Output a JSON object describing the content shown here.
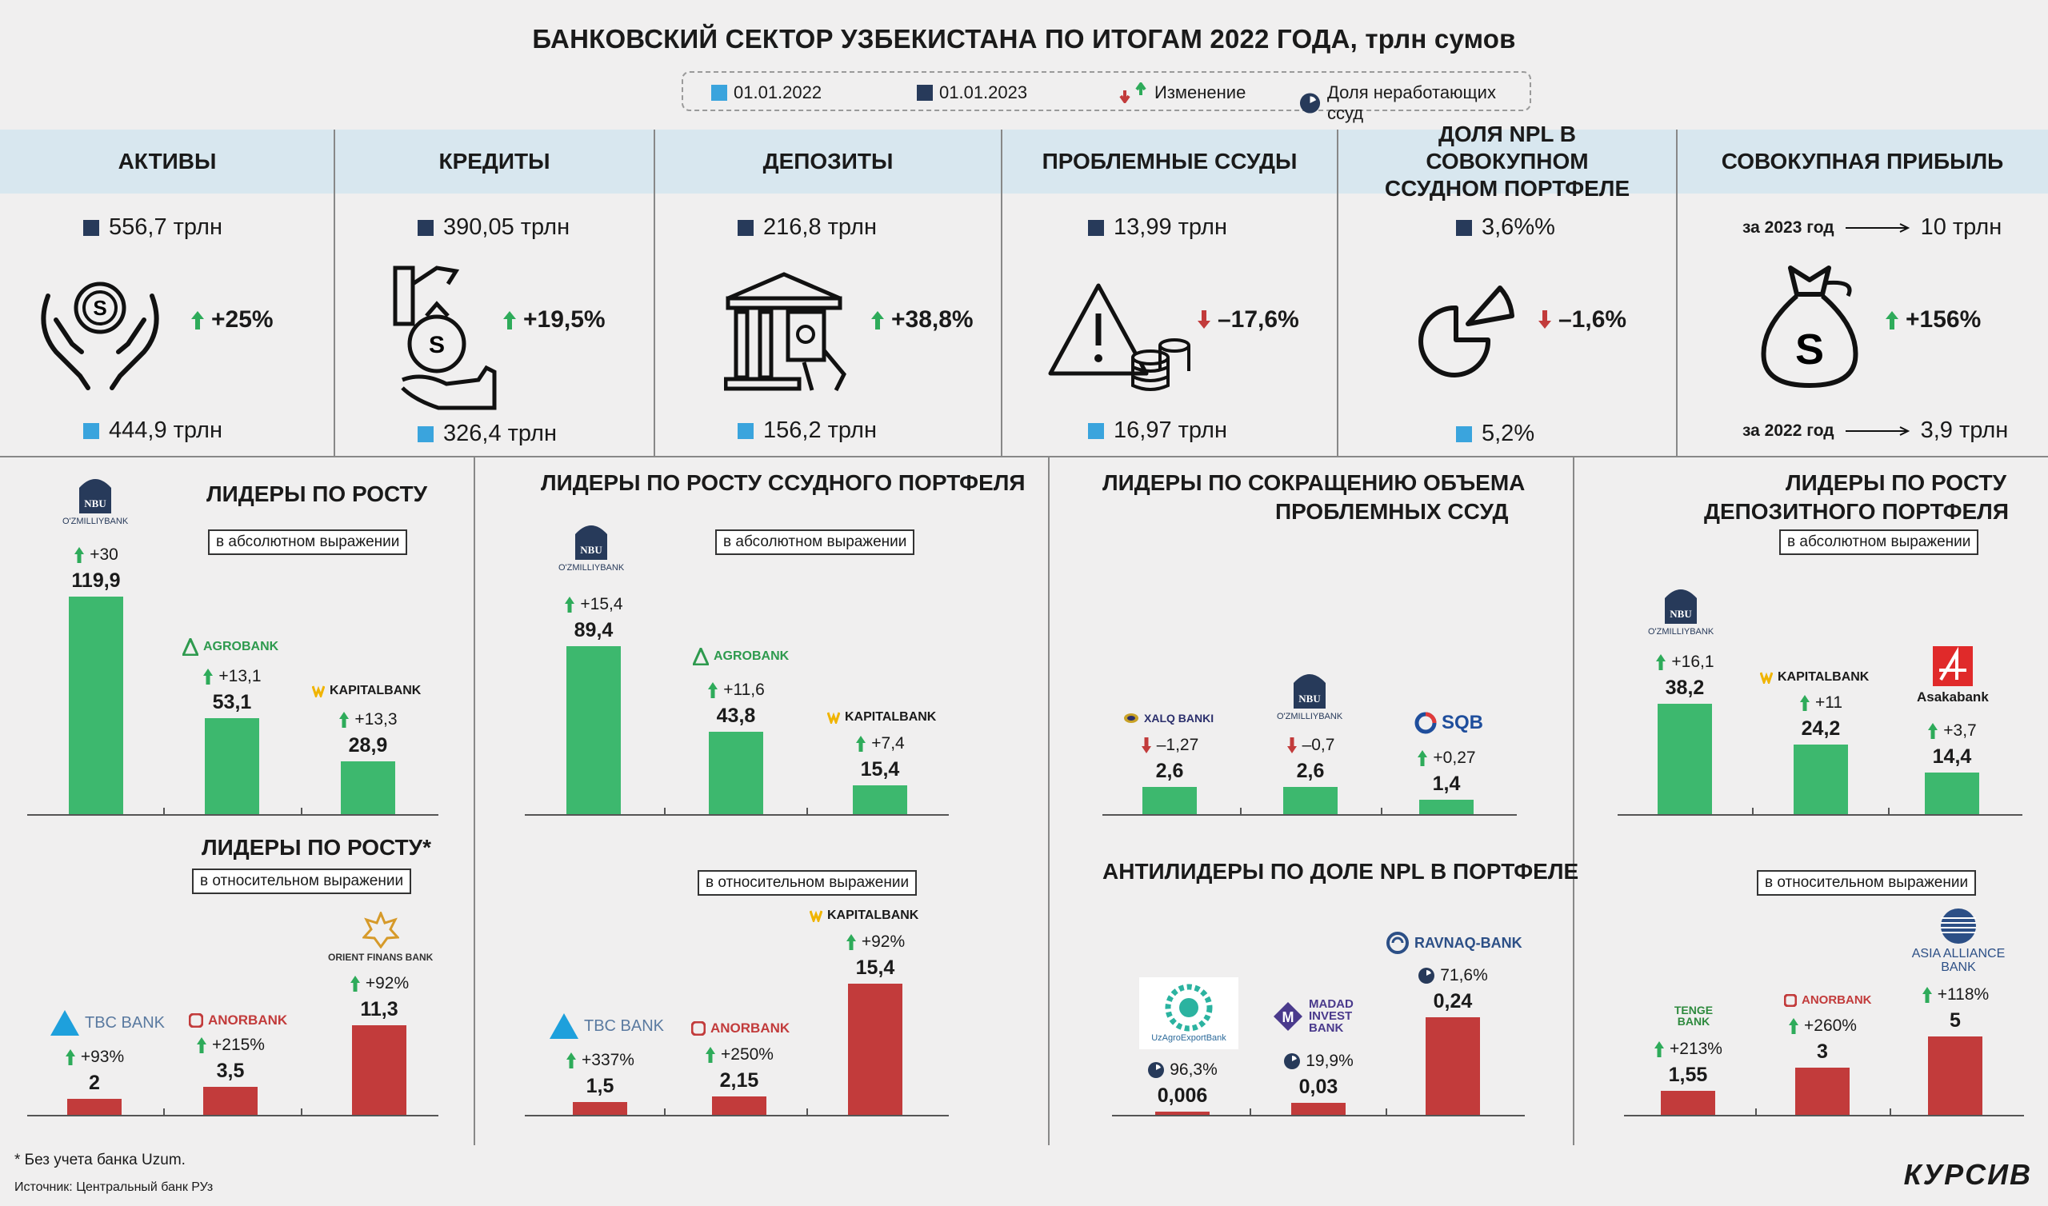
{
  "header": {
    "title": "БАНКОВСКИЙ СЕКТОР УЗБЕКИСТАНА ПО ИТОГАМ 2022 ГОДА, трлн сумов"
  },
  "legend": {
    "date_2022": "01.01.2022",
    "date_2023": "01.01.2023",
    "change": "Изменение",
    "npl_share": "Доля неработающих ссуд"
  },
  "colors": {
    "light_blue": "#3aa4dd",
    "dark_blue": "#273a5a",
    "green": "#3db86e",
    "red": "#c23b3b",
    "header_band": "#d8e7ef",
    "arrow_up": "#2eab5a",
    "arrow_down": "#c23b3b"
  },
  "kpis": [
    {
      "title": "АКТИВЫ",
      "value_2023": "556,7 трлн",
      "value_2022": "444,9 трлн",
      "change": "+25%",
      "direction": "up",
      "icon": "hands-coin-icon"
    },
    {
      "title": "КРЕДИТЫ",
      "value_2023": "390,05 трлн",
      "value_2022": "326,4 трлн",
      "change": "+19,5%",
      "direction": "up",
      "icon": "money-bag-hand-icon"
    },
    {
      "title": "ДЕПОЗИТЫ",
      "value_2023": "216,8 трлн",
      "value_2022": "156,2 трлн",
      "change": "+38,8%",
      "direction": "up",
      "icon": "bank-building-icon"
    },
    {
      "title": "ПРОБЛЕМНЫЕ ССУДЫ",
      "value_2023": "13,99 трлн",
      "value_2022": "16,97 трлн",
      "change": "–17,6%",
      "direction": "down",
      "icon": "warning-coins-icon"
    },
    {
      "title": "ДОЛЯ NPL В СОВОКУПНОМ ССУДНОМ ПОРТФЕЛЕ",
      "value_2023": "3,6%%",
      "value_2022": "5,2%",
      "change": "–1,6%",
      "direction": "down",
      "icon": "pie-slice-icon"
    },
    {
      "title": "СОВОКУПНАЯ ПРИБЫЛЬ",
      "row_2023_label": "за 2023 год",
      "row_2023_value": "10 трлн",
      "row_2022_label": "за 2022 год",
      "row_2022_value": "3,9 трлн",
      "change": "+156%",
      "direction": "up",
      "icon": "money-sack-icon"
    }
  ],
  "sections": {
    "s1_title": "ЛИДЕРЫ ПО РОСТУ",
    "s2_title": "ЛИДЕРЫ ПО РОСТУ ССУДНОГО ПОРТФЕЛЯ",
    "s3_title_1": "ЛИДЕРЫ ПО СОКРАЩЕНИЮ ОБЪЕМА",
    "s3_title_2": "ПРОБЛЕМНЫХ ССУД",
    "s4_title_1": "ЛИДЕРЫ ПО РОСТУ",
    "s4_title_2": "ДЕПОЗИТНОГО ПОРТФЕЛЯ",
    "s5_title": "ЛИДЕРЫ ПО РОСТУ*",
    "s7_title": "АНТИЛИДЕРЫ ПО ДОЛЕ NPL В ПОРТФЕЛЕ",
    "tag_abs": "в абсолютном выражении",
    "tag_rel": "в относительном выражении"
  },
  "logos": {
    "nbu": "NBU",
    "nbu_sub": "O'ZMILLIYBANK",
    "agrobank": "AGROBANK",
    "kapitalbank": "KAPITALBANK",
    "xalq": "XALQ BANKI",
    "sqb": "SQB",
    "asaka": "Asakabank",
    "tbc": "TBC BANK",
    "anor": "ANORBANK",
    "orient": "ORIENT FINANS BANK",
    "uzagro": "UzAgroExportBank",
    "madad": "MADAD INVEST BANK",
    "ravnaq": "RAVNAQ-BANK",
    "tenge": "TENGE BANK",
    "asia": "ASIA ALLIANCE BANK"
  },
  "chart_data": [
    {
      "type": "bar",
      "id": "c1",
      "title": "ЛИДЕРЫ ПО РОСТУ",
      "subtitle": "в абсолютном выражении",
      "categories": [
        "NBU",
        "AGROBANK",
        "KAPITALBANK"
      ],
      "values": [
        119.9,
        53.1,
        28.9
      ],
      "labels": [
        "119,9",
        "53,1",
        "28,9"
      ],
      "changes": [
        "+30",
        "+13,1",
        "+13,3"
      ],
      "directions": [
        "up",
        "up",
        "up"
      ],
      "color": "green"
    },
    {
      "type": "bar",
      "id": "c2",
      "title": "ЛИДЕРЫ ПО РОСТУ ССУДНОГО ПОРТФЕЛЯ",
      "subtitle": "в абсолютном выражении",
      "categories": [
        "NBU",
        "AGROBANK",
        "KAPITALBANK"
      ],
      "values": [
        89.4,
        43.8,
        15.4
      ],
      "labels": [
        "89,4",
        "43,8",
        "15,4"
      ],
      "changes": [
        "+15,4",
        "+11,6",
        "+7,4"
      ],
      "directions": [
        "up",
        "up",
        "up"
      ],
      "color": "green"
    },
    {
      "type": "bar",
      "id": "c3",
      "title": "ЛИДЕРЫ ПО СОКРАЩЕНИЮ ОБЪЕМА ПРОБЛЕМНЫХ ССУД",
      "categories": [
        "XALQ BANKI",
        "NBU",
        "SQB"
      ],
      "values": [
        2.6,
        2.6,
        1.4
      ],
      "labels": [
        "2,6",
        "2,6",
        "1,4"
      ],
      "changes": [
        "–1,27",
        "–0,7",
        "+0,27"
      ],
      "directions": [
        "down",
        "down",
        "up"
      ],
      "color": "green"
    },
    {
      "type": "bar",
      "id": "c4",
      "title": "ЛИДЕРЫ ПО РОСТУ ДЕПОЗИТНОГО ПОРТФЕЛЯ",
      "subtitle": "в абсолютном выражении",
      "categories": [
        "NBU",
        "KAPITALBANK",
        "Asakabank"
      ],
      "values": [
        38.2,
        24.2,
        14.4
      ],
      "labels": [
        "38,2",
        "24,2",
        "14,4"
      ],
      "changes": [
        "+16,1",
        "+11",
        "+3,7"
      ],
      "directions": [
        "up",
        "up",
        "up"
      ],
      "color": "green"
    },
    {
      "type": "bar",
      "id": "c5",
      "title": "ЛИДЕРЫ ПО РОСТУ*",
      "subtitle": "в относительном выражении",
      "categories": [
        "TBC BANK",
        "ANORBANK",
        "ORIENT FINANS BANK"
      ],
      "values": [
        2,
        3.5,
        11.3
      ],
      "labels": [
        "2",
        "3,5",
        "11,3"
      ],
      "changes": [
        "+93%",
        "+215%",
        "+92%"
      ],
      "directions": [
        "up",
        "up",
        "up"
      ],
      "color": "red"
    },
    {
      "type": "bar",
      "id": "c6",
      "subtitle": "в относительном выражении",
      "categories": [
        "TBC BANK",
        "ANORBANK",
        "KAPITALBANK"
      ],
      "values": [
        1.5,
        2.15,
        15.4
      ],
      "labels": [
        "1,5",
        "2,15",
        "15,4"
      ],
      "changes": [
        "+337%",
        "+250%",
        "+92%"
      ],
      "directions": [
        "up",
        "up",
        "up"
      ],
      "color": "red"
    },
    {
      "type": "bar",
      "id": "c7",
      "title": "АНТИЛИДЕРЫ ПО ДОЛЕ NPL В ПОРТФЕЛЕ",
      "categories": [
        "UzAgroExportBank",
        "MADAD INVEST BANK",
        "RAVNAQ-BANK"
      ],
      "values": [
        0.006,
        0.03,
        0.24
      ],
      "labels": [
        "0,006",
        "0,03",
        "0,24"
      ],
      "changes": [
        "96,3%",
        "19,9%",
        "71,6%"
      ],
      "directions": [
        "npl",
        "npl",
        "npl"
      ],
      "color": "red"
    },
    {
      "type": "bar",
      "id": "c8",
      "subtitle": "в относительном выражении",
      "categories": [
        "TENGE BANK",
        "ANORBANK",
        "ASIA ALLIANCE BANK"
      ],
      "values": [
        1.55,
        3,
        5
      ],
      "labels": [
        "1,55",
        "3",
        "5"
      ],
      "changes": [
        "+213%",
        "+260%",
        "+118%"
      ],
      "directions": [
        "up",
        "up",
        "up"
      ],
      "color": "red"
    }
  ],
  "footer": {
    "footnote": "* Без учета банка Uzum.",
    "source": "Источник: Центральный банк РУз",
    "brand": "КУРСИВ"
  }
}
